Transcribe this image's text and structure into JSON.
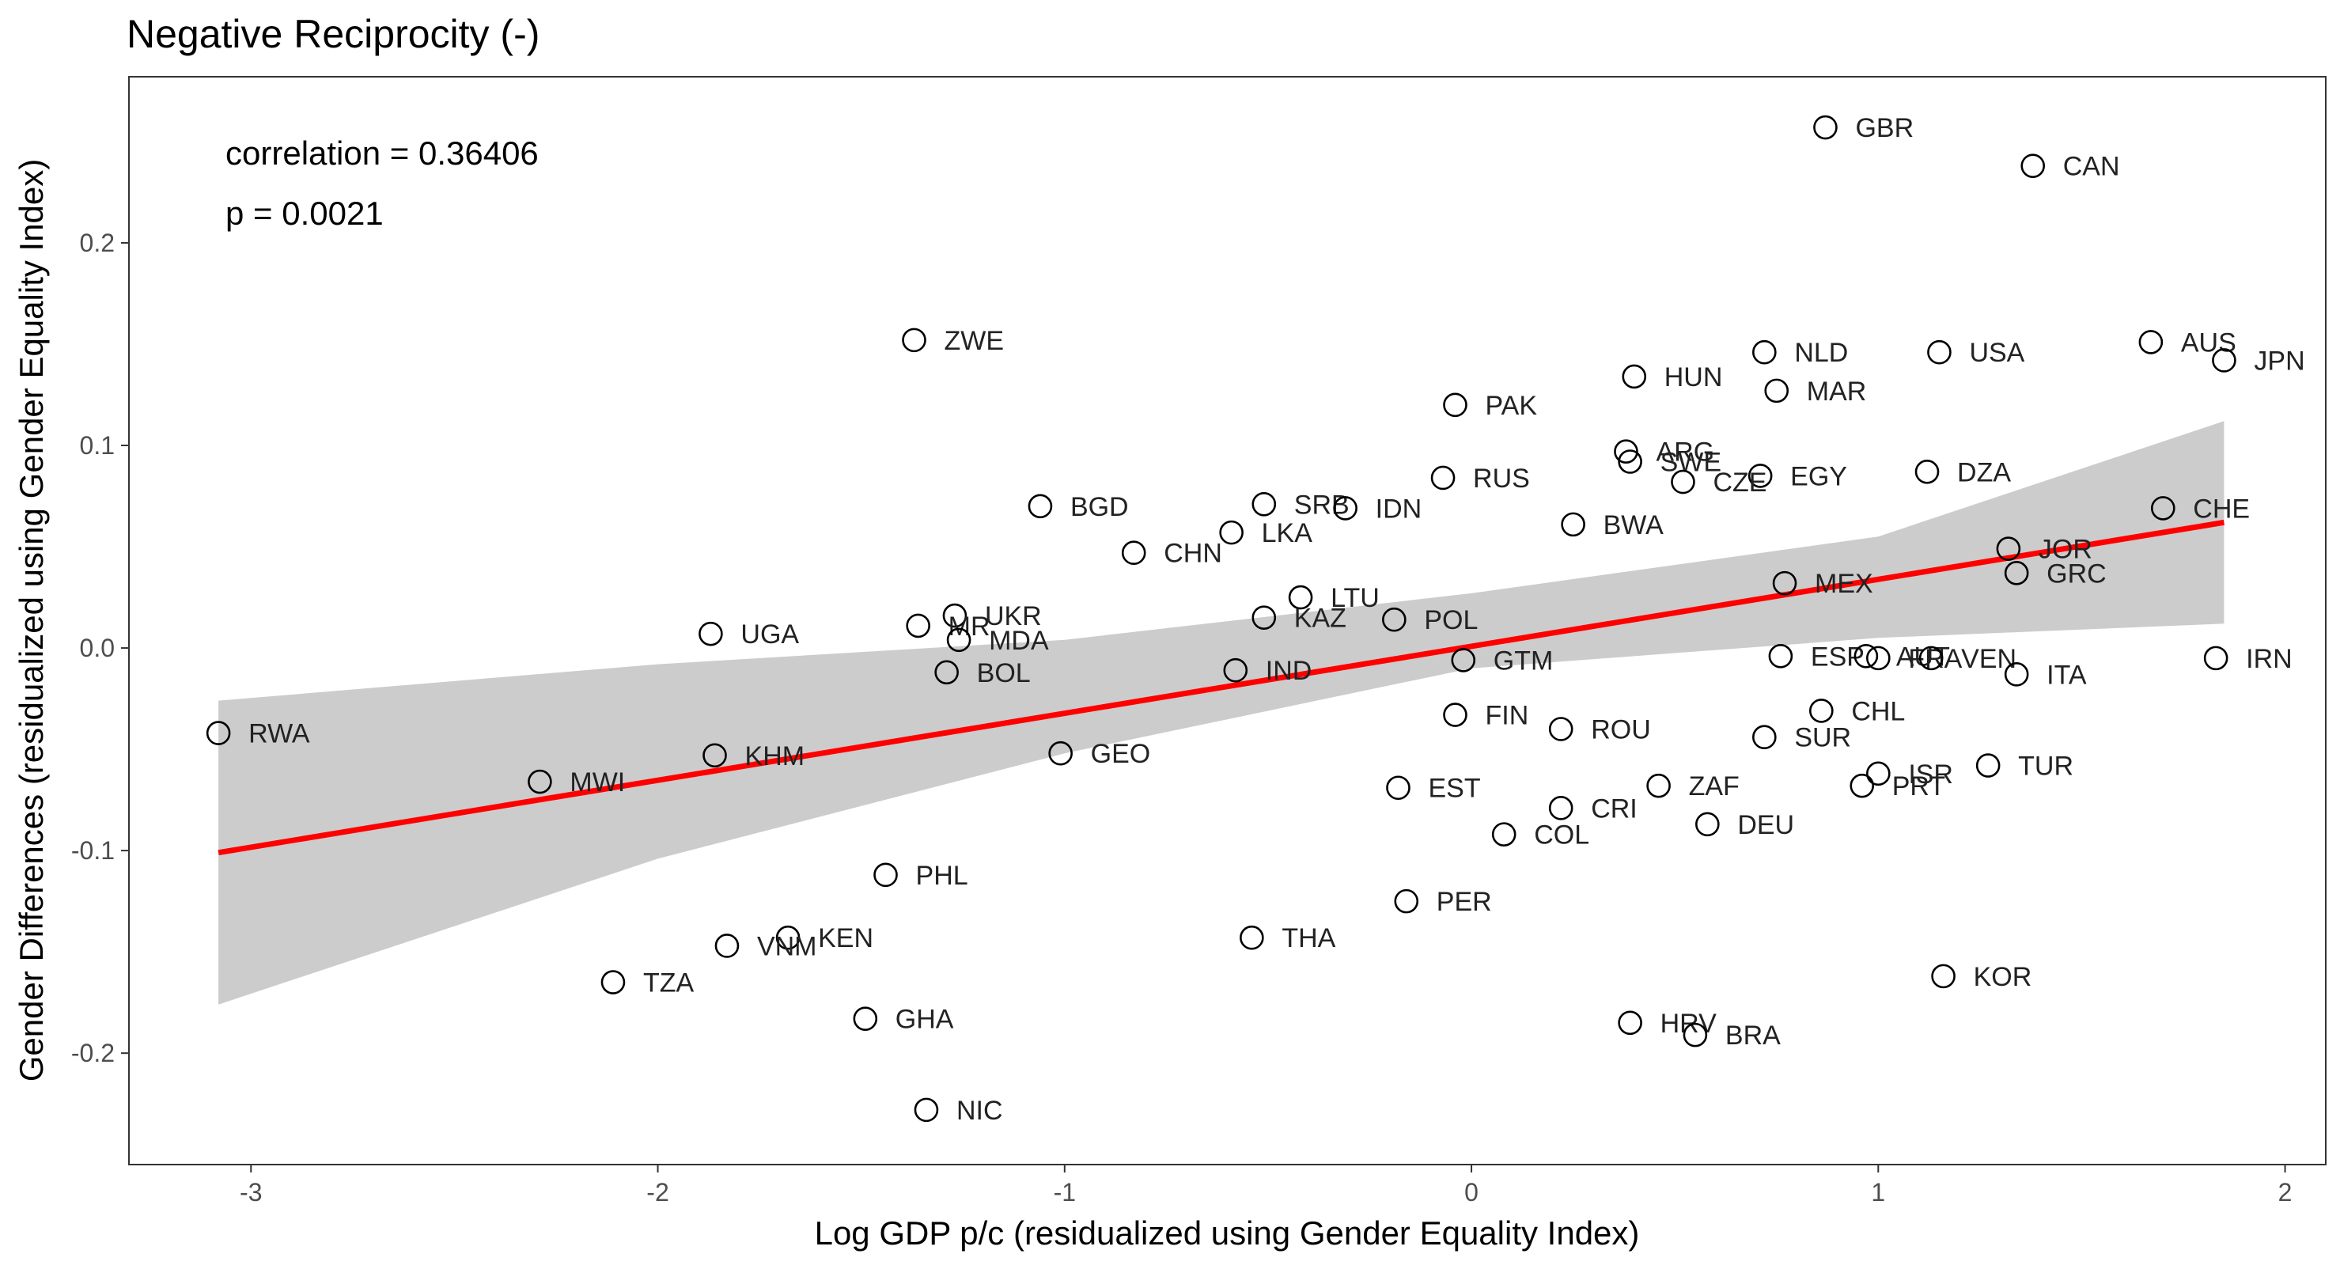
{
  "chart_data": {
    "type": "scatter",
    "title": "Negative Reciprocity (-)",
    "xlabel": "Log GDP p/c (residualized using Gender Equality Index)",
    "ylabel": "Gender Differences (residualized using Gender Equality Index)",
    "xlim": [
      -3.3,
      2.1
    ],
    "ylim": [
      -0.255,
      0.282
    ],
    "x_ticks": [
      -3,
      -2,
      -1,
      0,
      1,
      2
    ],
    "x_tick_labels": [
      "-3",
      "-2",
      "-1",
      "0",
      "1",
      "2"
    ],
    "y_ticks": [
      -0.2,
      -0.1,
      0.0,
      0.1,
      0.2
    ],
    "y_tick_labels": [
      "-0.2",
      "-0.1",
      "0.0",
      "0.1",
      "0.2"
    ],
    "grid": false,
    "annotations": [
      "correlation = 0.36406",
      "p = 0.0021"
    ],
    "regression": {
      "x": [
        -3.08,
        1.85
      ],
      "y": [
        -0.101,
        0.062
      ],
      "color": "#ff0000"
    },
    "confidence_band": {
      "color": "#cccccc",
      "x": [
        -3.08,
        -2,
        -1,
        0,
        1,
        1.85
      ],
      "lower": [
        -0.176,
        -0.104,
        -0.052,
        -0.01,
        0.005,
        0.012
      ],
      "upper": [
        -0.026,
        -0.008,
        0.004,
        0.027,
        0.055,
        0.112
      ]
    },
    "points": [
      {
        "label": "GBR",
        "x": 0.87,
        "y": 0.257
      },
      {
        "label": "CAN",
        "x": 1.38,
        "y": 0.238
      },
      {
        "label": "ZWE",
        "x": -1.37,
        "y": 0.152
      },
      {
        "label": "AUS",
        "x": 1.67,
        "y": 0.151
      },
      {
        "label": "NLD",
        "x": 0.72,
        "y": 0.146
      },
      {
        "label": "USA",
        "x": 1.15,
        "y": 0.146
      },
      {
        "label": "JPN",
        "x": 1.85,
        "y": 0.142
      },
      {
        "label": "HUN",
        "x": 0.4,
        "y": 0.134
      },
      {
        "label": "MAR",
        "x": 0.75,
        "y": 0.127
      },
      {
        "label": "PAK",
        "x": -0.04,
        "y": 0.12
      },
      {
        "label": "ARG",
        "x": 0.38,
        "y": 0.097
      },
      {
        "label": "SWE",
        "x": 0.39,
        "y": 0.092
      },
      {
        "label": "DZA",
        "x": 1.12,
        "y": 0.087
      },
      {
        "label": "EGY",
        "x": 0.71,
        "y": 0.085
      },
      {
        "label": "RUS",
        "x": -0.07,
        "y": 0.084
      },
      {
        "label": "CZE",
        "x": 0.52,
        "y": 0.082
      },
      {
        "label": "SRB",
        "x": -0.51,
        "y": 0.071
      },
      {
        "label": "BGD",
        "x": -1.06,
        "y": 0.07
      },
      {
        "label": "IDN",
        "x": -0.31,
        "y": 0.069
      },
      {
        "label": "CHE",
        "x": 1.7,
        "y": 0.069
      },
      {
        "label": "BWA",
        "x": 0.25,
        "y": 0.061
      },
      {
        "label": "LKA",
        "x": -0.59,
        "y": 0.057
      },
      {
        "label": "JOR",
        "x": 1.32,
        "y": 0.049
      },
      {
        "label": "CHN",
        "x": -0.83,
        "y": 0.047
      },
      {
        "label": "GRC",
        "x": 1.34,
        "y": 0.037
      },
      {
        "label": "MEX",
        "x": 0.77,
        "y": 0.032
      },
      {
        "label": "LTU",
        "x": -0.42,
        "y": 0.025
      },
      {
        "label": "UKR",
        "x": -1.27,
        "y": 0.016
      },
      {
        "label": "KAZ",
        "x": -0.51,
        "y": 0.015
      },
      {
        "label": "POL",
        "x": -0.19,
        "y": 0.014
      },
      {
        "label": "MR",
        "x": -1.36,
        "y": 0.011
      },
      {
        "label": "UGA",
        "x": -1.87,
        "y": 0.007
      },
      {
        "label": "MDA",
        "x": -1.26,
        "y": 0.004
      },
      {
        "label": "ESP",
        "x": 0.76,
        "y": -0.004
      },
      {
        "label": "AUT",
        "x": 0.97,
        "y": -0.004
      },
      {
        "label": "FRA",
        "x": 1.0,
        "y": -0.005
      },
      {
        "label": "VEN",
        "x": 1.13,
        "y": -0.005
      },
      {
        "label": "IRN",
        "x": 1.83,
        "y": -0.005
      },
      {
        "label": "GTM",
        "x": -0.02,
        "y": -0.006
      },
      {
        "label": "IND",
        "x": -0.58,
        "y": -0.011
      },
      {
        "label": "BOL",
        "x": -1.29,
        "y": -0.012
      },
      {
        "label": "ITA",
        "x": 1.34,
        "y": -0.013
      },
      {
        "label": "CHL",
        "x": 0.86,
        "y": -0.031
      },
      {
        "label": "FIN",
        "x": -0.04,
        "y": -0.033
      },
      {
        "label": "ROU",
        "x": 0.22,
        "y": -0.04
      },
      {
        "label": "RWA",
        "x": -3.08,
        "y": -0.042
      },
      {
        "label": "SUR",
        "x": 0.72,
        "y": -0.044
      },
      {
        "label": "GEO",
        "x": -1.01,
        "y": -0.052
      },
      {
        "label": "KHM",
        "x": -1.86,
        "y": -0.053
      },
      {
        "label": "TUR",
        "x": 1.27,
        "y": -0.058
      },
      {
        "label": "ISR",
        "x": 1.0,
        "y": -0.062
      },
      {
        "label": "MWI",
        "x": -2.29,
        "y": -0.066
      },
      {
        "label": "ZAF",
        "x": 0.46,
        "y": -0.068
      },
      {
        "label": "PRT",
        "x": 0.96,
        "y": -0.068
      },
      {
        "label": "EST",
        "x": -0.18,
        "y": -0.069
      },
      {
        "label": "CRI",
        "x": 0.22,
        "y": -0.079
      },
      {
        "label": "DEU",
        "x": 0.58,
        "y": -0.087
      },
      {
        "label": "COL",
        "x": 0.08,
        "y": -0.092
      },
      {
        "label": "PHL",
        "x": -1.44,
        "y": -0.112
      },
      {
        "label": "PER",
        "x": -0.16,
        "y": -0.125
      },
      {
        "label": "KEN",
        "x": -1.68,
        "y": -0.143
      },
      {
        "label": "THA",
        "x": -0.54,
        "y": -0.143
      },
      {
        "label": "VNM",
        "x": -1.83,
        "y": -0.147
      },
      {
        "label": "KOR",
        "x": 1.16,
        "y": -0.162
      },
      {
        "label": "TZA",
        "x": -2.11,
        "y": -0.165
      },
      {
        "label": "GHA",
        "x": -1.49,
        "y": -0.183
      },
      {
        "label": "HRV",
        "x": 0.39,
        "y": -0.185
      },
      {
        "label": "BRA",
        "x": 0.55,
        "y": -0.191
      },
      {
        "label": "NIC",
        "x": -1.34,
        "y": -0.228
      }
    ]
  }
}
